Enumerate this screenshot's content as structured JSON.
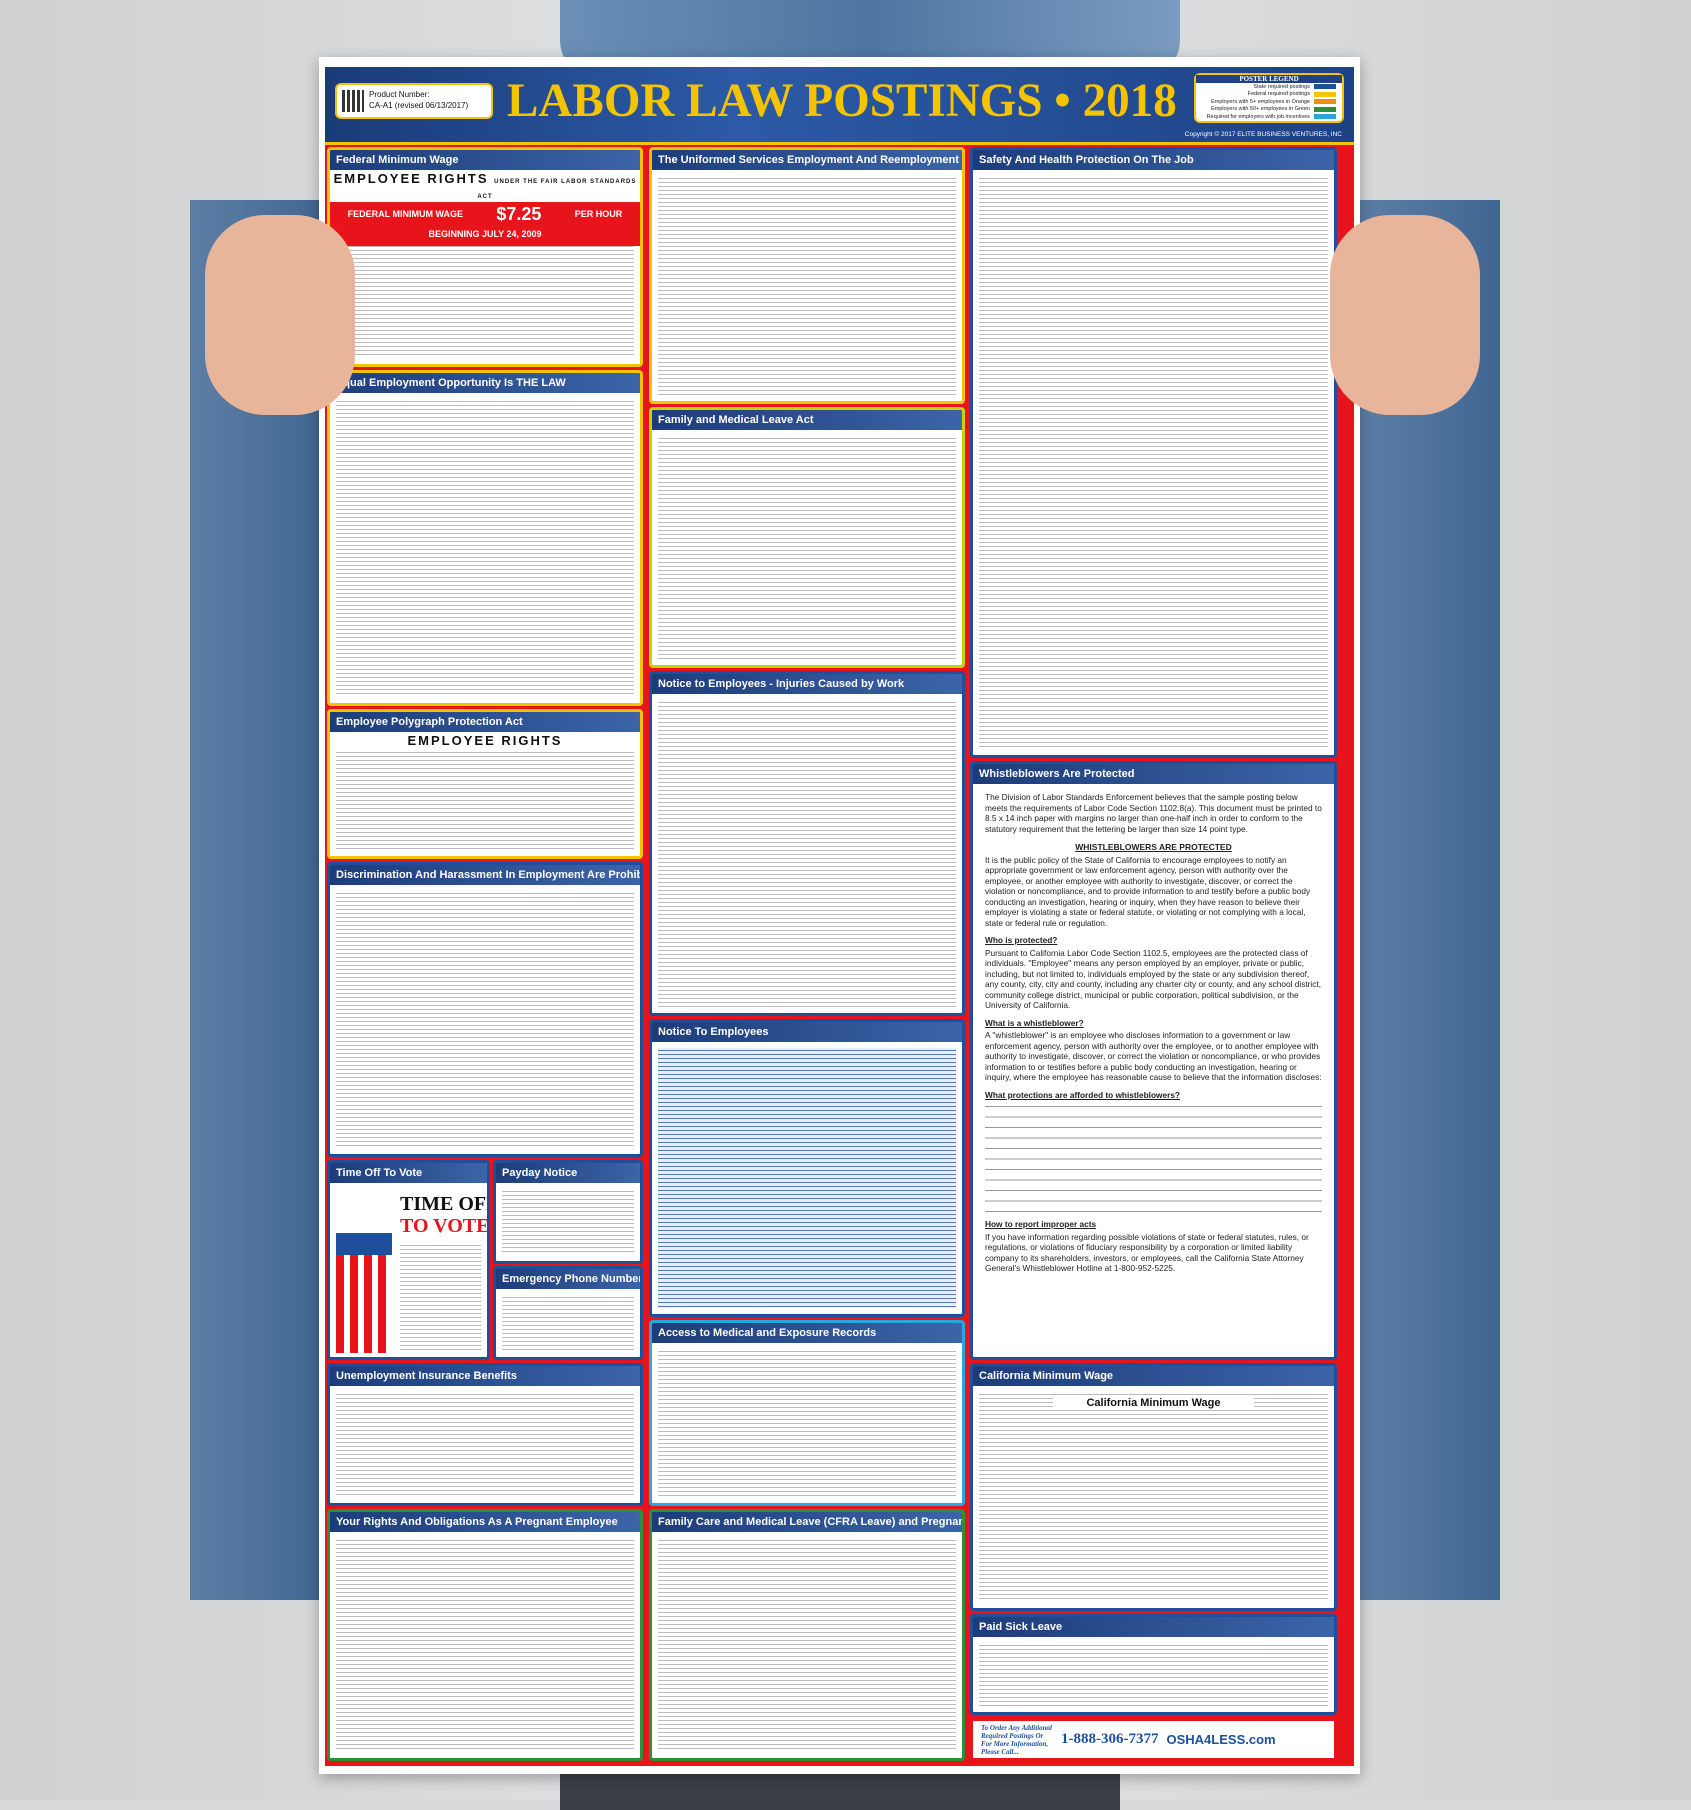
{
  "poster": {
    "product_label": "Product Number:",
    "product_number": "CA-A1 (revised 06/13/2017)",
    "title": "LABOR LAW POSTINGS • 2018",
    "copyright": "Copyright © 2017 ELITE BUSINESS VENTURES, INC",
    "legend": {
      "title": "POSTER LEGEND",
      "items": [
        {
          "label": "State required postings",
          "color": "#1d4f9c"
        },
        {
          "label": "Federal required postings",
          "color": "#f5c400"
        },
        {
          "label": "Employers with 5+ employees in Orange",
          "color": "#f08a1c"
        },
        {
          "label": "Employers with 50+ employees in Green",
          "color": "#2e8f3a"
        },
        {
          "label": "Required for employers with job incentives",
          "color": "#29a6e0"
        }
      ]
    }
  },
  "sections": {
    "fmw": {
      "title": "Federal Minimum Wage",
      "sub": "EMPLOYEE RIGHTS",
      "sub2": "UNDER THE FAIR LABOR STANDARDS ACT",
      "bar_label": "FEDERAL MINIMUM WAGE",
      "wage": "$7.25",
      "per": "PER HOUR",
      "begin": "BEGINNING JULY 24, 2009"
    },
    "eeo": {
      "title": "Equal Employment Opportunity Is THE LAW"
    },
    "poly": {
      "title": "Employee Polygraph Protection Act",
      "sub": "EMPLOYEE RIGHTS"
    },
    "disc": {
      "title": "Discrimination And Harassment In Employment Are Prohibited By Law"
    },
    "vote": {
      "title": "Time Off To Vote",
      "big1": "TIME OFF",
      "big2": "TO VOTE"
    },
    "payday": {
      "title": "Payday Notice"
    },
    "emerg": {
      "title": "Emergency Phone Numbers"
    },
    "ui": {
      "title": "Unemployment Insurance Benefits"
    },
    "preg": {
      "title": "Your Rights And Obligations As A Pregnant Employee"
    },
    "userra": {
      "title": "The Uniformed Services Employment And Reemployment Rights Act"
    },
    "fmla": {
      "title": "Family and Medical Leave Act"
    },
    "inj": {
      "title": "Notice to Employees - Injuries Caused by Work"
    },
    "nte": {
      "title": "Notice To Employees"
    },
    "med": {
      "title": "Access to Medical and Exposure Records"
    },
    "cfra": {
      "title": "Family Care and Medical Leave (CFRA Leave) and Pregnancy Disability Leave"
    },
    "safety": {
      "title": "Safety And Health Protection On The Job"
    },
    "whistle": {
      "title": "Whistleblowers Are Protected",
      "intro": "The Division of Labor Standards Enforcement believes that the sample posting below meets the requirements of Labor Code Section 1102.8(a). This document must be printed to 8.5 x 14 inch paper with margins no larger than one-half inch in order to conform to the statutory requirement that the lettering be larger than size 14 point type.",
      "heading": "WHISTLEBLOWERS ARE PROTECTED",
      "p1": "It is the public policy of the State of California to encourage employees to notify an appropriate government or law enforcement agency, person with authority over the employee, or another employee with authority to investigate, discover, or correct the violation or noncompliance, and to provide information to and testify before a public body conducting an investigation, hearing or inquiry, when they have reason to believe their employer is violating a state or federal statute, or violating or not complying with a local, state or federal rule or regulation.",
      "h_who": "Who is protected?",
      "p_who": "Pursuant to California Labor Code Section 1102.5, employees are the protected class of individuals. \"Employee\" means any person employed by an employer, private or public, including, but not limited to, individuals employed by the state or any subdivision thereof, any county, city, city and county, including any charter city or county, and any school district, community college district, municipal or public corporation, political subdivision, or the University of California.",
      "h_what": "What is a whistleblower?",
      "p_what": "A \"whistleblower\" is an employee who discloses information to a government or law enforcement agency, person with authority over the employee, or to another employee with authority to investigate, discover, or correct the violation or noncompliance, or who provides information to or testifies before a public body conducting an investigation, hearing or inquiry, where the employee has reasonable cause to believe that the information discloses:",
      "h_prot": "What protections are afforded to whistleblowers?",
      "h_report": "How to report improper acts",
      "p_report": "If you have information regarding possible violations of state or federal statutes, rules, or regulations, or violations of fiduciary responsibility by a corporation or limited liability company to its shareholders, investors, or employees, call the California State Attorney General's Whistleblower Hotline at 1-800-952-5225."
    },
    "camw": {
      "title": "California Minimum Wage",
      "sub": "California Minimum Wage"
    },
    "psl": {
      "title": "Paid Sick Leave"
    }
  },
  "footer": {
    "info": "To Order Any Additional Required Postings Or For More Information, Please Call...",
    "phone": "1-888-306-7377",
    "logo": "OSHA4LESS.com"
  }
}
